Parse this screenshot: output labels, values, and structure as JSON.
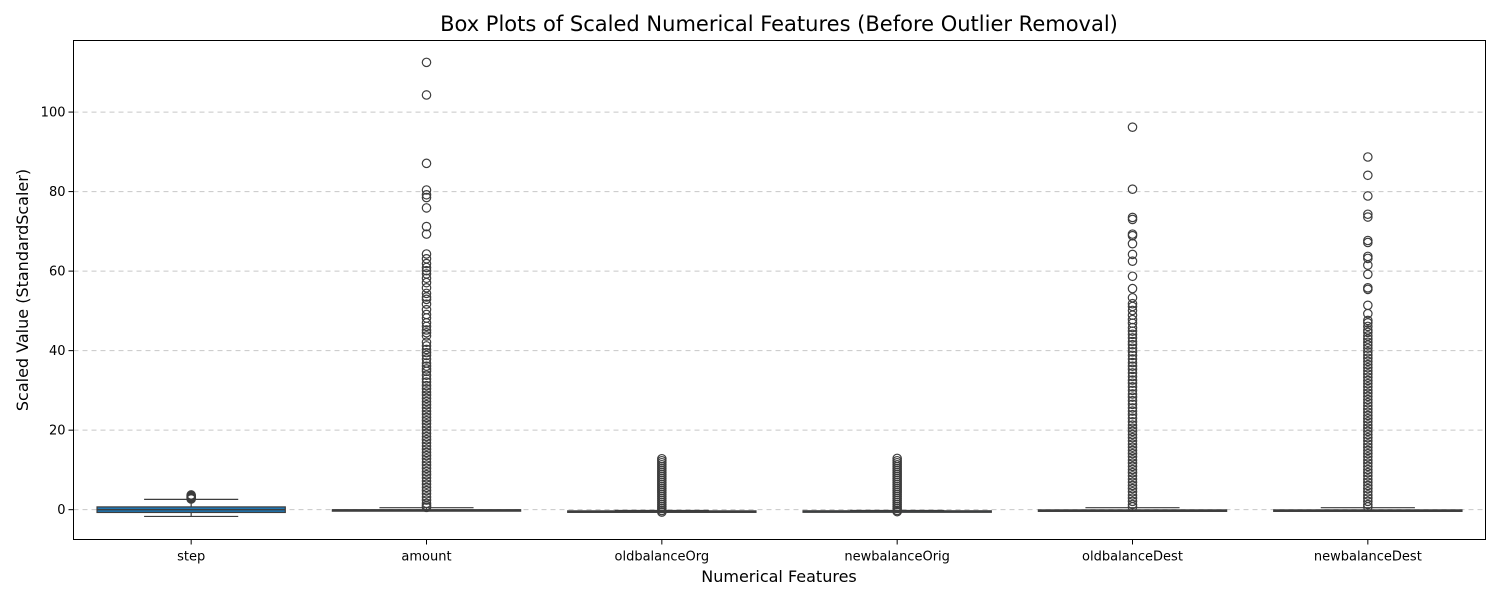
{
  "chart_data": {
    "type": "box",
    "title": "Box Plots of Scaled Numerical Features (Before Outlier Removal)",
    "xlabel": "Numerical Features",
    "ylabel": "Scaled Value (StandardScaler)",
    "ylim": [
      -7.5,
      118
    ],
    "yticks": [
      0,
      20,
      40,
      60,
      80,
      100
    ],
    "grid": "y-dashed",
    "box_color": "#1f77b4",
    "line_color": "#3d3d3d",
    "categories": [
      "step",
      "amount",
      "oldbalanceOrg",
      "newbalanceOrig",
      "oldbalanceDest",
      "newbalanceDest"
    ],
    "boxes": [
      {
        "name": "step",
        "whisker_low": -1.7,
        "q1": -0.7,
        "median": 0.0,
        "q3": 0.7,
        "whisker_high": 2.6,
        "outliers": [
          2.7,
          2.9,
          3.1,
          3.3,
          3.5,
          3.7
        ]
      },
      {
        "name": "amount",
        "whisker_low": -0.3,
        "q1": -0.25,
        "median": -0.15,
        "q3": 0.0,
        "whisker_high": 0.5,
        "outliers": [
          112.5,
          104.3,
          87.1,
          80.4,
          79.2,
          78.5,
          75.9,
          71.2,
          69.3,
          64.3,
          63.1,
          61.9,
          60.9,
          60.1,
          59.3,
          58.2,
          57.1,
          55.8,
          54.4,
          53.5,
          52.9,
          51.7,
          50.3,
          49.1,
          48.2,
          47.0,
          46.1,
          45.2,
          44.5,
          43.7,
          42.1,
          41.2,
          40.3,
          39.5,
          38.8,
          37.9,
          36.9,
          36.1,
          35.4,
          34.8,
          33.8,
          32.9,
          32.1,
          31.2,
          30.4,
          29.6,
          28.8,
          28.0,
          27.2,
          26.4,
          25.6,
          24.8,
          24.0,
          23.2,
          22.4,
          21.6,
          20.8,
          20.0,
          19.2,
          18.4,
          17.6,
          16.8,
          16.0,
          15.2,
          14.4,
          13.6,
          12.8,
          12.0,
          11.2,
          10.4,
          9.6,
          8.8,
          8.0,
          7.2,
          6.4,
          5.6,
          4.8,
          4.0,
          3.2,
          2.4,
          1.6,
          1.0,
          0.6
        ]
      },
      {
        "name": "oldbalanceOrg",
        "whisker_low": -0.5,
        "q1": -0.45,
        "median": -0.4,
        "q3": -0.3,
        "whisker_high": -0.2,
        "outliers": [
          12.8,
          12.3,
          11.8,
          11.3,
          10.8,
          10.3,
          9.8,
          9.3,
          8.8,
          8.3,
          7.8,
          7.3,
          6.8,
          6.3,
          5.8,
          5.3,
          4.8,
          4.3,
          3.8,
          3.3,
          2.8,
          2.3,
          1.8,
          1.3,
          0.8,
          0.3,
          -0.2,
          -0.6
        ]
      },
      {
        "name": "newbalanceOrig",
        "whisker_low": -0.45,
        "q1": -0.42,
        "median": -0.38,
        "q3": -0.28,
        "whisker_high": -0.2,
        "outliers": [
          12.9,
          12.3,
          11.8,
          11.3,
          10.8,
          10.3,
          9.8,
          9.3,
          8.8,
          8.3,
          7.8,
          7.3,
          6.8,
          6.3,
          5.8,
          5.3,
          4.8,
          4.3,
          3.8,
          3.3,
          2.8,
          2.3,
          1.8,
          1.3,
          0.8,
          0.3,
          -0.2,
          -0.5
        ]
      },
      {
        "name": "oldbalanceDest",
        "whisker_low": -0.3,
        "q1": -0.3,
        "median": -0.22,
        "q3": -0.05,
        "whisker_high": 0.5,
        "outliers": [
          96.2,
          80.6,
          73.5,
          73.0,
          69.3,
          68.9,
          66.9,
          64.2,
          62.5,
          58.7,
          55.6,
          53.3,
          51.8,
          51.1,
          50.1,
          48.9,
          47.8,
          46.9,
          45.8,
          44.9,
          44.1,
          43.2,
          42.3,
          41.5,
          40.6,
          39.7,
          38.8,
          37.9,
          37.0,
          36.1,
          35.3,
          34.4,
          33.5,
          32.6,
          31.8,
          30.9,
          30.0,
          29.1,
          28.3,
          27.4,
          26.5,
          25.6,
          24.8,
          23.9,
          23.0,
          22.1,
          21.3,
          20.5,
          19.7,
          18.9,
          18.1,
          17.3,
          16.5,
          15.7,
          14.9,
          14.1,
          13.3,
          12.5,
          11.7,
          10.9,
          10.1,
          9.3,
          8.5,
          7.7,
          6.9,
          6.1,
          5.3,
          4.5,
          3.7,
          2.9,
          2.1,
          1.3,
          0.7
        ]
      },
      {
        "name": "newbalanceDest",
        "whisker_low": -0.3,
        "q1": -0.3,
        "median": -0.22,
        "q3": -0.05,
        "whisker_high": 0.5,
        "outliers": [
          88.7,
          84.1,
          78.9,
          74.3,
          73.6,
          67.7,
          67.2,
          63.7,
          63.2,
          61.5,
          59.2,
          55.8,
          55.4,
          51.4,
          49.3,
          47.6,
          47.0,
          46.1,
          45.2,
          44.6,
          43.7,
          42.9,
          42.1,
          41.4,
          40.6,
          39.7,
          38.9,
          38.1,
          37.3,
          36.5,
          35.7,
          34.9,
          34.1,
          33.3,
          32.5,
          31.7,
          30.9,
          30.1,
          29.3,
          28.5,
          27.7,
          26.9,
          26.1,
          25.3,
          24.5,
          23.7,
          22.9,
          22.1,
          21.3,
          20.5,
          19.7,
          18.9,
          18.1,
          17.3,
          16.5,
          15.7,
          14.9,
          14.1,
          13.3,
          12.5,
          11.7,
          10.9,
          10.1,
          9.3,
          8.5,
          7.7,
          6.9,
          6.1,
          5.3,
          4.5,
          3.7,
          2.9,
          2.1,
          1.3,
          0.7
        ]
      }
    ]
  }
}
